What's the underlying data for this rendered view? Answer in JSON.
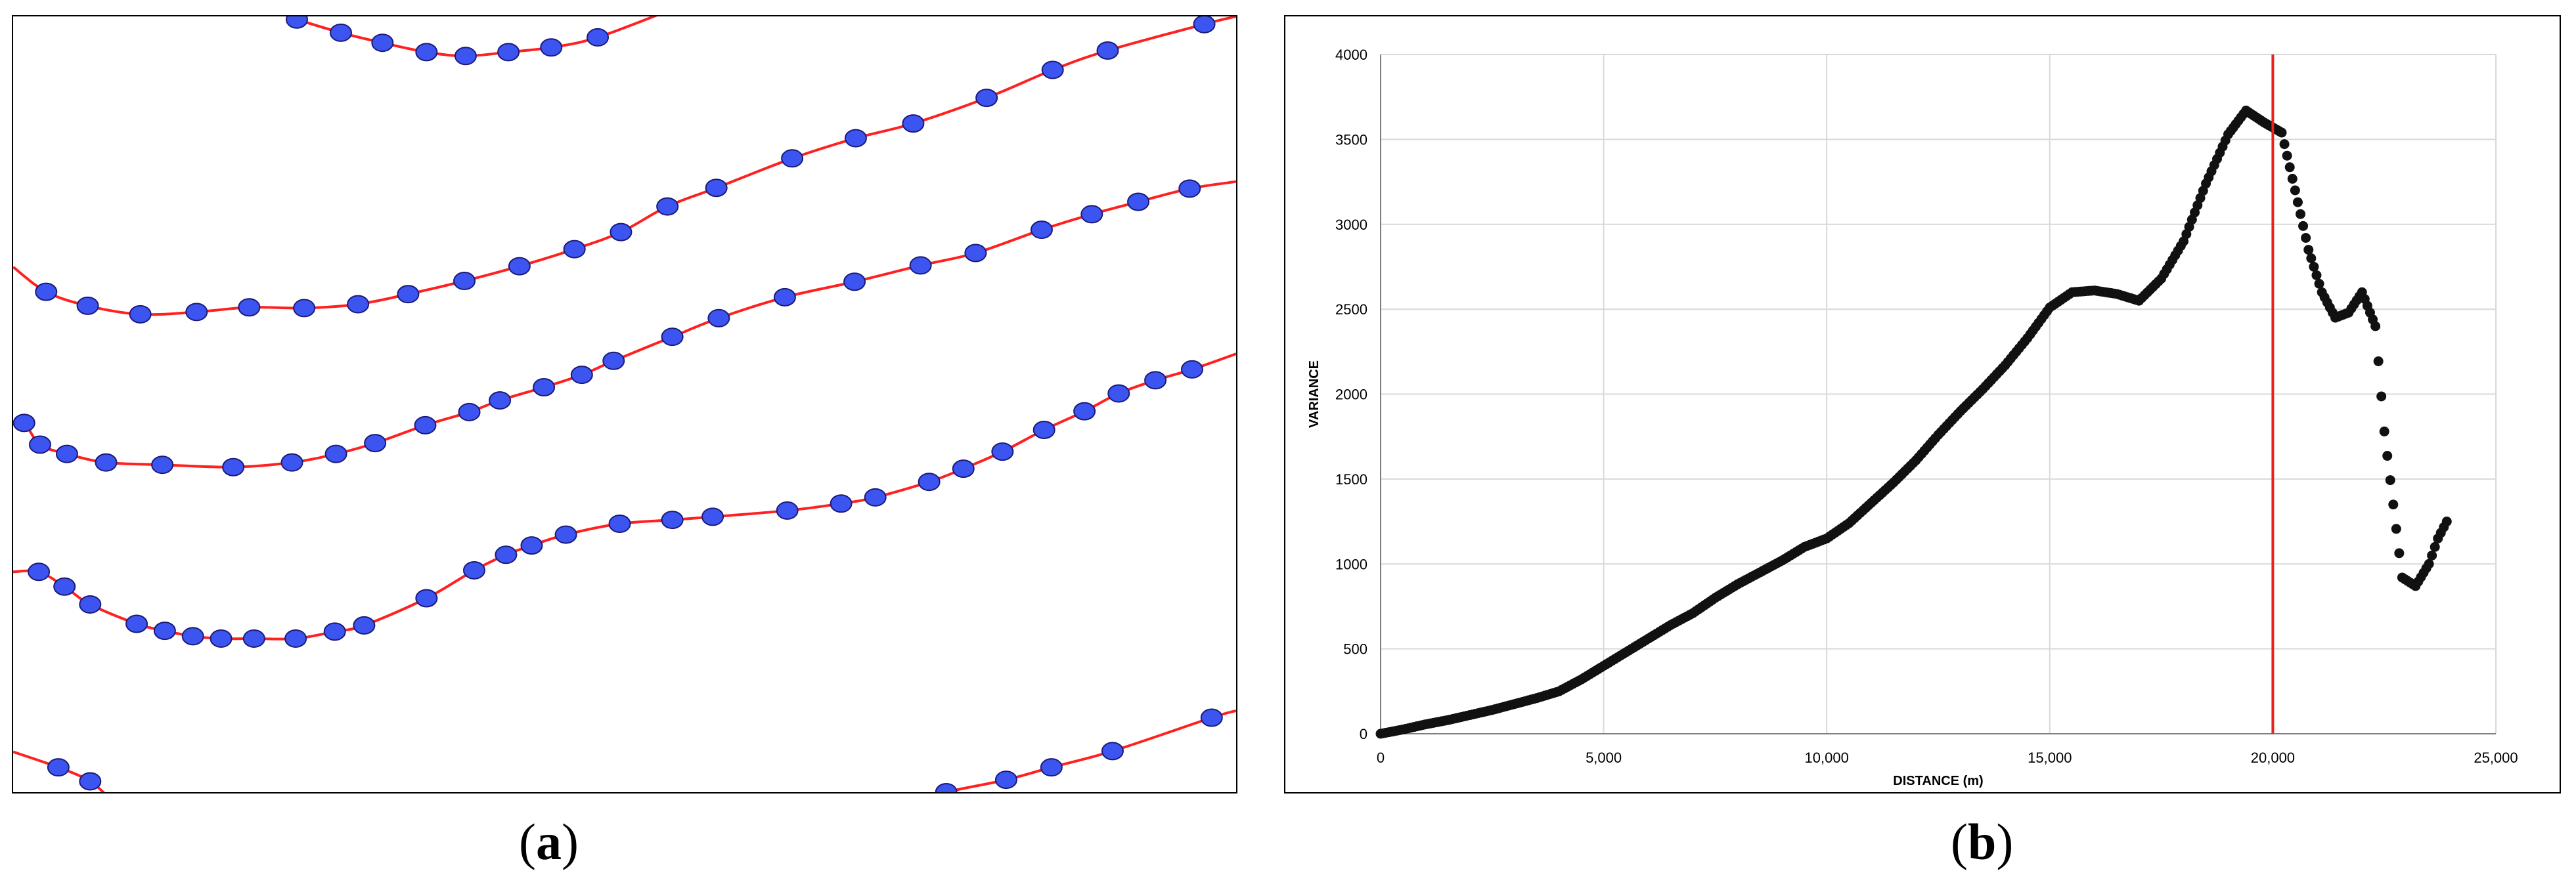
{
  "captions": {
    "a": "a",
    "b": "b"
  },
  "colors": {
    "line": "#ff2020",
    "point_fill": "#3d55f0",
    "point_stroke": "#1a1a7a",
    "variance_point": "#111111",
    "marker_line": "#e8221c",
    "grid": "#d9d9d9"
  },
  "chart_data": [
    {
      "type": "line",
      "panel": "a",
      "title": "",
      "xlabel": "",
      "ylabel": "",
      "series": [
        {
          "values": [
            [
              0.232,
              0.004
            ],
            [
              0.268,
              0.021
            ],
            [
              0.302,
              0.034
            ],
            [
              0.338,
              0.046
            ],
            [
              0.37,
              0.051
            ],
            [
              0.405,
              0.046
            ],
            [
              0.44,
              0.04
            ],
            [
              0.478,
              0.027
            ],
            [
              0.54,
              -0.01
            ]
          ]
        },
        {
          "values": [
            [
              0.0,
              0.323
            ],
            [
              0.027,
              0.355
            ],
            [
              0.061,
              0.373
            ],
            [
              0.104,
              0.384
            ],
            [
              0.15,
              0.381
            ],
            [
              0.193,
              0.375
            ],
            [
              0.238,
              0.376
            ],
            [
              0.282,
              0.371
            ],
            [
              0.323,
              0.358
            ],
            [
              0.369,
              0.341
            ],
            [
              0.414,
              0.322
            ],
            [
              0.459,
              0.3
            ],
            [
              0.497,
              0.278
            ],
            [
              0.535,
              0.245
            ],
            [
              0.575,
              0.221
            ],
            [
              0.637,
              0.183
            ],
            [
              0.689,
              0.157
            ],
            [
              0.736,
              0.138
            ],
            [
              0.796,
              0.105
            ],
            [
              0.85,
              0.069
            ],
            [
              0.895,
              0.044
            ],
            [
              0.974,
              0.01
            ],
            [
              1.0,
              0.0
            ]
          ]
        },
        {
          "values": [
            [
              0.0,
              0.526
            ],
            [
              0.009,
              0.524
            ],
            [
              0.022,
              0.552
            ],
            [
              0.044,
              0.564
            ],
            [
              0.076,
              0.575
            ],
            [
              0.122,
              0.578
            ],
            [
              0.18,
              0.581
            ],
            [
              0.228,
              0.575
            ],
            [
              0.264,
              0.564
            ],
            [
              0.296,
              0.55
            ],
            [
              0.337,
              0.527
            ],
            [
              0.373,
              0.51
            ],
            [
              0.398,
              0.495
            ],
            [
              0.434,
              0.478
            ],
            [
              0.465,
              0.462
            ],
            [
              0.491,
              0.444
            ],
            [
              0.539,
              0.413
            ],
            [
              0.577,
              0.389
            ],
            [
              0.631,
              0.362
            ],
            [
              0.688,
              0.342
            ],
            [
              0.742,
              0.321
            ],
            [
              0.787,
              0.305
            ],
            [
              0.841,
              0.275
            ],
            [
              0.882,
              0.255
            ],
            [
              0.92,
              0.239
            ],
            [
              0.962,
              0.222
            ],
            [
              1.0,
              0.213
            ]
          ]
        },
        {
          "values": [
            [
              0.0,
              0.716
            ],
            [
              0.021,
              0.716
            ],
            [
              0.042,
              0.735
            ],
            [
              0.063,
              0.758
            ],
            [
              0.101,
              0.783
            ],
            [
              0.124,
              0.792
            ],
            [
              0.147,
              0.799
            ],
            [
              0.17,
              0.802
            ],
            [
              0.197,
              0.802
            ],
            [
              0.231,
              0.802
            ],
            [
              0.263,
              0.793
            ],
            [
              0.287,
              0.785
            ],
            [
              0.338,
              0.75
            ],
            [
              0.377,
              0.714
            ],
            [
              0.403,
              0.694
            ],
            [
              0.424,
              0.682
            ],
            [
              0.452,
              0.668
            ],
            [
              0.496,
              0.654
            ],
            [
              0.539,
              0.649
            ],
            [
              0.572,
              0.645
            ],
            [
              0.633,
              0.637
            ],
            [
              0.677,
              0.628
            ],
            [
              0.705,
              0.62
            ],
            [
              0.749,
              0.6
            ],
            [
              0.777,
              0.583
            ],
            [
              0.809,
              0.561
            ],
            [
              0.843,
              0.533
            ],
            [
              0.876,
              0.509
            ],
            [
              0.904,
              0.486
            ],
            [
              0.934,
              0.469
            ],
            [
              0.964,
              0.455
            ],
            [
              1.0,
              0.435
            ]
          ]
        },
        {
          "values": [
            [
              0.0,
              0.948
            ],
            [
              0.037,
              0.968
            ],
            [
              0.063,
              0.986
            ],
            [
              0.08,
              1.01
            ]
          ]
        },
        {
          "values": [
            [
              0.75,
              1.01
            ],
            [
              0.763,
              1.0
            ],
            [
              0.812,
              0.984
            ],
            [
              0.849,
              0.968
            ],
            [
              0.899,
              0.947
            ],
            [
              0.98,
              0.904
            ],
            [
              1.0,
              0.895
            ]
          ]
        }
      ]
    },
    {
      "type": "scatter",
      "panel": "b",
      "title": "",
      "xlabel": "DISTANCE (m)",
      "ylabel": "VARIANCE",
      "xlim": [
        0,
        25000
      ],
      "ylim": [
        0,
        4000
      ],
      "xticks": [
        "0",
        "5,000",
        "10,000",
        "15,000",
        "20,000",
        "25,000"
      ],
      "yticks": [
        "0",
        "500",
        "1000",
        "1500",
        "2000",
        "2500",
        "3000",
        "3500",
        "4000"
      ],
      "grid": true,
      "vertical_line_x": 20000,
      "points": [
        [
          0,
          0
        ],
        [
          500,
          25
        ],
        [
          1000,
          55
        ],
        [
          1500,
          80
        ],
        [
          2000,
          110
        ],
        [
          2500,
          140
        ],
        [
          3000,
          175
        ],
        [
          3500,
          210
        ],
        [
          4000,
          250
        ],
        [
          4500,
          320
        ],
        [
          5000,
          400
        ],
        [
          5500,
          480
        ],
        [
          6000,
          560
        ],
        [
          6500,
          640
        ],
        [
          7000,
          710
        ],
        [
          7500,
          800
        ],
        [
          8000,
          880
        ],
        [
          8500,
          950
        ],
        [
          9000,
          1020
        ],
        [
          9500,
          1100
        ],
        [
          10000,
          1150
        ],
        [
          10500,
          1240
        ],
        [
          11000,
          1360
        ],
        [
          11500,
          1480
        ],
        [
          12000,
          1610
        ],
        [
          12500,
          1760
        ],
        [
          13000,
          1900
        ],
        [
          13500,
          2030
        ],
        [
          14000,
          2170
        ],
        [
          14500,
          2330
        ],
        [
          15000,
          2510
        ],
        [
          15500,
          2600
        ],
        [
          16000,
          2610
        ],
        [
          16500,
          2590
        ],
        [
          17000,
          2550
        ],
        [
          17500,
          2680
        ],
        [
          18000,
          2900
        ],
        [
          18500,
          3240
        ],
        [
          19000,
          3530
        ],
        [
          19400,
          3670
        ],
        [
          19800,
          3600
        ],
        [
          20200,
          3540
        ],
        [
          20500,
          3200
        ],
        [
          20800,
          2850
        ],
        [
          21100,
          2600
        ],
        [
          21400,
          2450
        ],
        [
          21700,
          2480
        ],
        [
          22000,
          2600
        ],
        [
          22300,
          2400
        ],
        [
          22500,
          1780
        ],
        [
          22700,
          1350
        ],
        [
          22900,
          920
        ],
        [
          23200,
          870
        ],
        [
          23500,
          1000
        ],
        [
          23700,
          1150
        ],
        [
          23900,
          1250
        ]
      ]
    }
  ]
}
